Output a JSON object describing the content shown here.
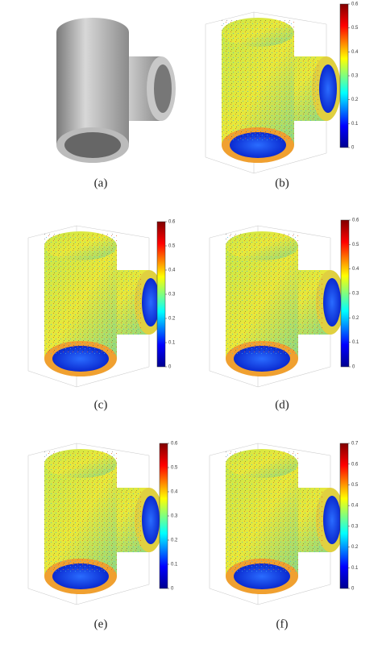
{
  "panels": [
    {
      "caption": "(a)"
    },
    {
      "caption": "(b)",
      "colorbar_ticks": [
        0,
        0.1,
        0.2,
        0.3,
        0.4,
        0.5,
        0.6
      ]
    },
    {
      "caption": "(c)",
      "colorbar_ticks": [
        0,
        0.1,
        0.2,
        0.3,
        0.4,
        0.5,
        0.6
      ]
    },
    {
      "caption": "(d)",
      "colorbar_ticks": [
        0,
        0.1,
        0.2,
        0.3,
        0.4,
        0.5,
        0.6
      ]
    },
    {
      "caption": "(e)",
      "colorbar_ticks": [
        0,
        0.1,
        0.2,
        0.3,
        0.4,
        0.5,
        0.6
      ]
    },
    {
      "caption": "(f)",
      "colorbar_ticks": [
        0,
        0.1,
        0.2,
        0.3,
        0.4,
        0.5,
        0.6,
        0.7
      ]
    }
  ]
}
